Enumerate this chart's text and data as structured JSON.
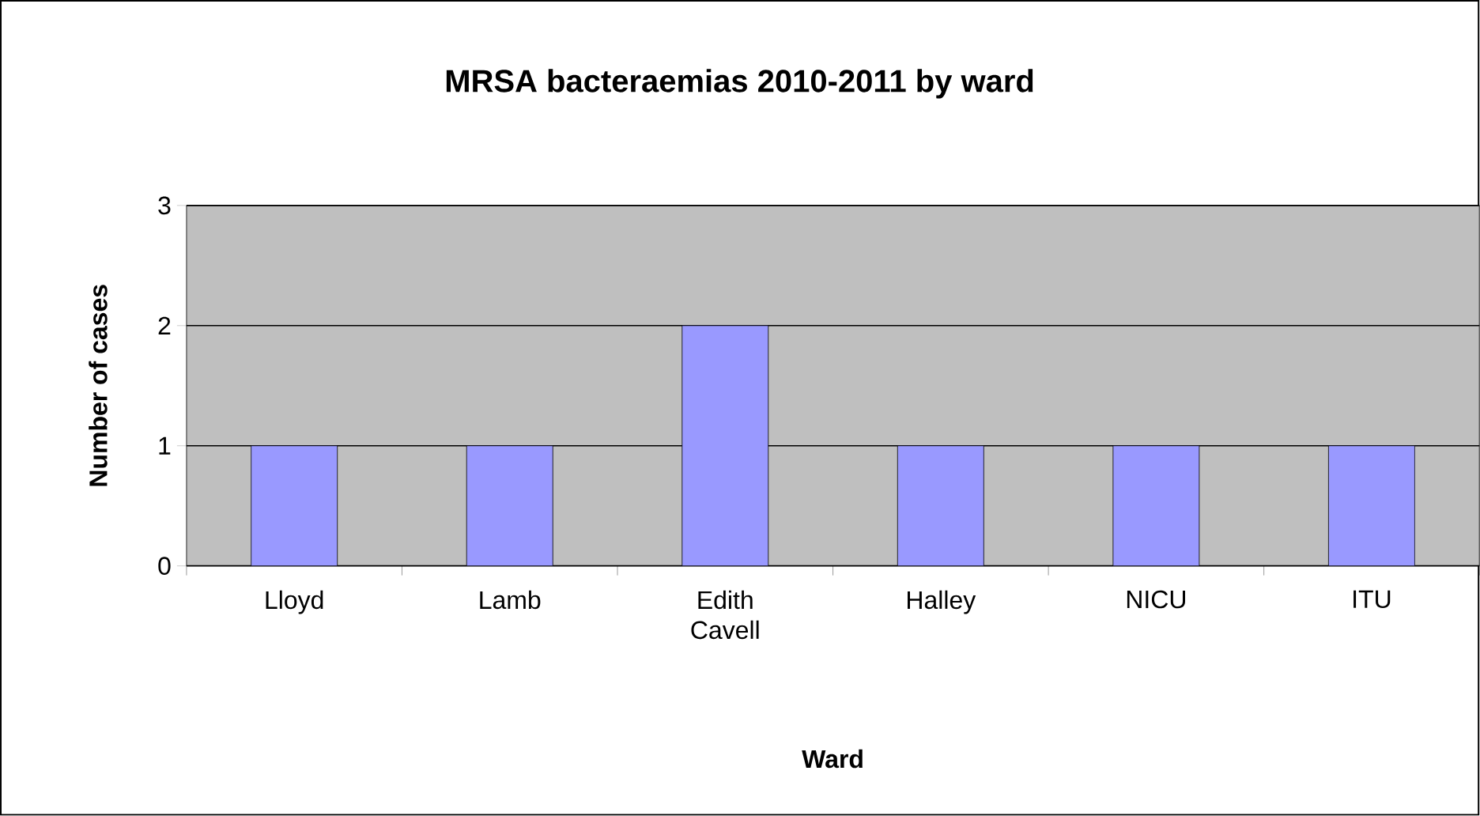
{
  "chart_data": {
    "type": "bar",
    "title": "MRSA bacteraemias 2010-2011 by ward",
    "xlabel": "Ward",
    "ylabel": "Number of cases",
    "categories": [
      "Lloyd",
      "Lamb",
      "Edith Cavell",
      "Halley",
      "NICU",
      "ITU"
    ],
    "values": [
      1,
      1,
      2,
      1,
      1,
      1
    ],
    "color": "#9999ff",
    "ylim": [
      0,
      3
    ],
    "yticks": [
      0,
      1,
      2,
      3
    ],
    "grid": "y"
  }
}
